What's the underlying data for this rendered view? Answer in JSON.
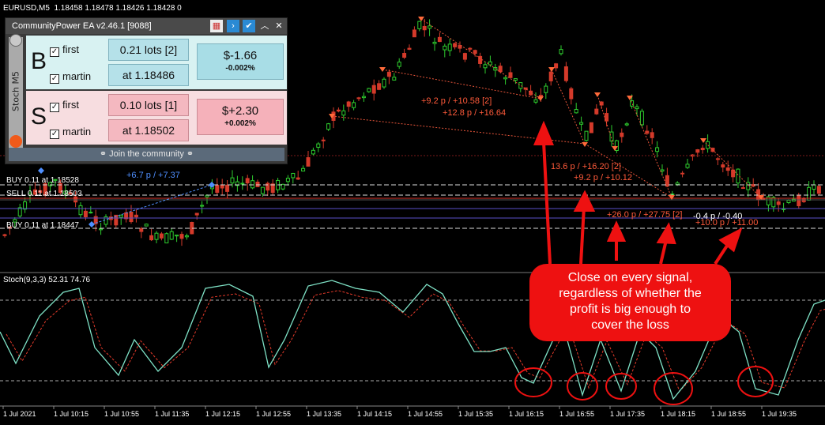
{
  "chart_header": {
    "symbol": "EURUSD,M5",
    "ohlc": "1.18458 1.18478 1.18426 1.18428 0"
  },
  "ea_panel": {
    "title": "CommunityPower EA v2.46.1 [9088]",
    "side_label": "Stoch M5",
    "buy": {
      "letter": "B",
      "first_label": "first",
      "martin_label": "martin",
      "lots": "0.21 lots [2]",
      "price": "at 1.18486",
      "profit": "$-1.66",
      "percent": "-0.002%"
    },
    "sell": {
      "letter": "S",
      "first_label": "first",
      "martin_label": "martin",
      "lots": "0.10 lots [1]",
      "price": "at 1.18502",
      "profit": "$+2.30",
      "percent": "+0.002%"
    },
    "join_label": "Join the community",
    "icons": [
      "calendar-icon",
      "chevron-right-icon",
      "check-icon",
      "chevron-up-icon",
      "close-icon",
      "link-icon"
    ]
  },
  "trade_lines": {
    "buy1": "BUY 0.11 at 1.18528",
    "sell1": "SELL 0.11 at 1.18503",
    "buy2": "BUY 0.11 at 1.18447"
  },
  "profit_labels": {
    "blue": "+6.7 p / +7.37",
    "l1": "+9.2 p / +10.58 [2]",
    "l2": "+12.8 p / +16.64",
    "l3": "13.6 p / +16.20 [2]",
    "l4": "+9.2 p / +10.12",
    "l5": "+26.0 p / +27.75 [2]",
    "l6": "-0.4 p / -0.40",
    "l7": "+10.0 p / +11.00"
  },
  "stoch_label": "Stoch(9,3,3) 52.31 74.76",
  "time_axis": [
    "1 Jul 2021",
    "1 Jul 10:15",
    "1 Jul 10:55",
    "1 Jul 11:35",
    "1 Jul 12:15",
    "1 Jul 12:55",
    "1 Jul 13:35",
    "1 Jul 14:15",
    "1 Jul 14:55",
    "1 Jul 15:35",
    "1 Jul 16:15",
    "1 Jul 16:55",
    "1 Jul 17:35",
    "1 Jul 18:15",
    "1 Jul 18:55",
    "1 Jul 19:35"
  ],
  "annotation": {
    "line1": "Close on every signal,",
    "line2": "regardless of whether the",
    "line3": "profit is big enough to",
    "line4": "cover the loss"
  },
  "colors": {
    "bull": "#2ecc2e",
    "bear": "#d43a2a",
    "stoch_main": "#7fe3c7",
    "stoch_signal": "#e53a2a",
    "callout": "#ee1111"
  }
}
